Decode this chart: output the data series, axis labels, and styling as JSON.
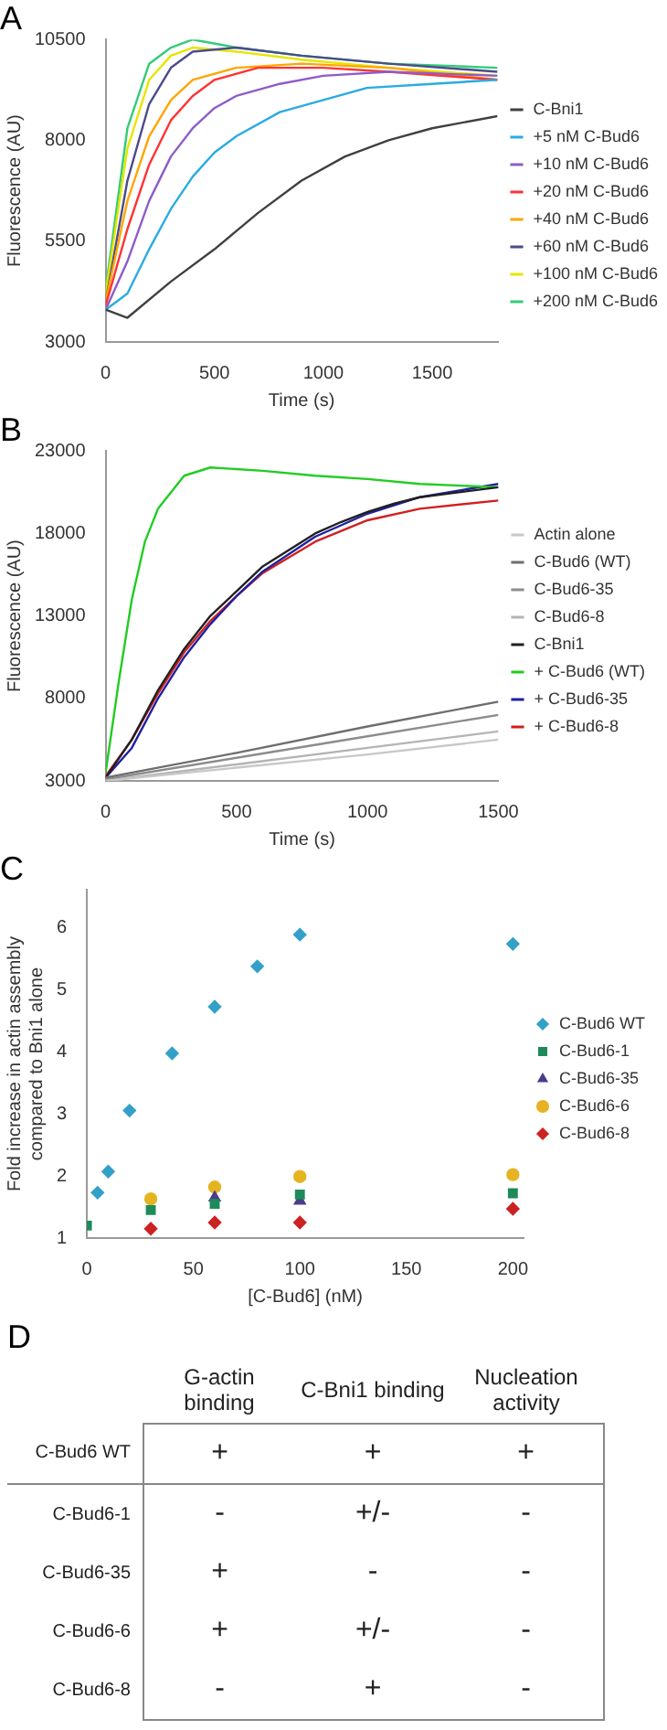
{
  "chart_data": [
    {
      "type": "line",
      "title": "A",
      "xlabel": "Time (s)",
      "ylabel": "Fluorescence (AU)",
      "xlim": [
        0,
        1800
      ],
      "xticks": [
        0,
        500,
        1000,
        1500
      ],
      "ylim": [
        3000,
        10500
      ],
      "yticks": [
        3000,
        5500,
        8000,
        10500
      ],
      "grid": false,
      "legend": "right",
      "marker": "none",
      "series": [
        {
          "name": "C-Bni1",
          "color": "#404040",
          "x": [
            0,
            100,
            300,
            500,
            700,
            900,
            1100,
            1300,
            1500,
            1800
          ],
          "values": [
            3800,
            3600,
            4500,
            5300,
            6200,
            7000,
            7600,
            8000,
            8300,
            8600
          ]
        },
        {
          "name": "+5 nM C-Bud6",
          "color": "#29abe2",
          "x": [
            0,
            100,
            200,
            300,
            400,
            500,
            600,
            800,
            1000,
            1200,
            1500,
            1800
          ],
          "values": [
            3800,
            4200,
            5300,
            6300,
            7100,
            7700,
            8100,
            8700,
            9000,
            9300,
            9400,
            9500
          ]
        },
        {
          "name": "+10 nM C-Bud6",
          "color": "#8e5cc8",
          "x": [
            0,
            100,
            200,
            300,
            400,
            500,
            600,
            800,
            1000,
            1300,
            1800
          ],
          "values": [
            3800,
            5000,
            6500,
            7600,
            8300,
            8800,
            9100,
            9400,
            9600,
            9700,
            9600
          ]
        },
        {
          "name": "+20 nM C-Bud6",
          "color": "#ff3333",
          "x": [
            0,
            100,
            200,
            300,
            400,
            500,
            700,
            1000,
            1300,
            1800
          ],
          "values": [
            3900,
            5800,
            7400,
            8500,
            9100,
            9500,
            9800,
            9800,
            9700,
            9500
          ]
        },
        {
          "name": "+40 nM C-Bud6",
          "color": "#ffa500",
          "x": [
            0,
            100,
            200,
            300,
            400,
            600,
            900,
            1300,
            1800
          ],
          "values": [
            4000,
            6500,
            8100,
            9000,
            9500,
            9800,
            9900,
            9800,
            9500
          ]
        },
        {
          "name": "+60 nM C-Bud6",
          "color": "#4b4b8b",
          "x": [
            0,
            100,
            200,
            300,
            400,
            600,
            900,
            1300,
            1800
          ],
          "values": [
            4000,
            7000,
            8900,
            9800,
            10200,
            10300,
            10100,
            9900,
            9700
          ]
        },
        {
          "name": "+100 nM C-Bud6",
          "color": "#e6e600",
          "x": [
            0,
            100,
            200,
            300,
            400,
            600,
            900,
            1300,
            1800
          ],
          "values": [
            4200,
            7800,
            9500,
            10100,
            10300,
            10200,
            10000,
            9800,
            9600
          ]
        },
        {
          "name": "+200 nM C-Bud6",
          "color": "#33cc77",
          "x": [
            0,
            100,
            200,
            300,
            400,
            600,
            900,
            1300,
            1800
          ],
          "values": [
            4300,
            8300,
            9900,
            10300,
            10500,
            10300,
            10100,
            9900,
            9800
          ]
        }
      ]
    },
    {
      "type": "line",
      "title": "B",
      "xlabel": "Time (s)",
      "ylabel": "Fluorescence (AU)",
      "xlim": [
        0,
        1500
      ],
      "xticks": [
        0,
        500,
        1000,
        1500
      ],
      "ylim": [
        3000,
        23000
      ],
      "yticks": [
        3000,
        8000,
        13000,
        18000,
        23000
      ],
      "grid": false,
      "legend": "right",
      "marker": "none",
      "series": [
        {
          "name": "Actin alone",
          "color": "#c8c8c8",
          "x": [
            0,
            500,
            1000,
            1500
          ],
          "values": [
            3000,
            3800,
            4600,
            5500
          ]
        },
        {
          "name": "C-Bud6 (WT)",
          "color": "#6e6e6e",
          "x": [
            0,
            500,
            1000,
            1500
          ],
          "values": [
            3200,
            4700,
            6300,
            7800
          ]
        },
        {
          "name": "C-Bud6-35",
          "color": "#8c8c8c",
          "x": [
            0,
            500,
            1000,
            1500
          ],
          "values": [
            3100,
            4400,
            5700,
            7000
          ]
        },
        {
          "name": "C-Bud6-8",
          "color": "#b4b4b4",
          "x": [
            0,
            500,
            1000,
            1500
          ],
          "values": [
            3000,
            4000,
            5000,
            6000
          ]
        },
        {
          "name": "C-Bni1",
          "color": "#202020",
          "x": [
            0,
            100,
            200,
            300,
            400,
            500,
            600,
            700,
            800,
            900,
            1000,
            1100,
            1200,
            1500
          ],
          "values": [
            3200,
            5500,
            8500,
            11000,
            13000,
            14500,
            16000,
            17000,
            18000,
            18700,
            19300,
            19800,
            20200,
            20800
          ]
        },
        {
          "name": "+ C-Bud6 (WT)",
          "color": "#22cc22",
          "x": [
            0,
            50,
            100,
            150,
            200,
            300,
            400,
            600,
            800,
            1000,
            1200,
            1500
          ],
          "values": [
            3500,
            9000,
            14000,
            17500,
            19500,
            21500,
            22000,
            21800,
            21500,
            21300,
            21000,
            20800
          ]
        },
        {
          "name": "+ C-Bud6-35",
          "color": "#2020a0",
          "x": [
            0,
            100,
            200,
            300,
            400,
            500,
            600,
            800,
            1000,
            1200,
            1500
          ],
          "values": [
            3200,
            5000,
            8000,
            10500,
            12500,
            14200,
            15700,
            17800,
            19200,
            20200,
            21000
          ]
        },
        {
          "name": "+ C-Bud6-8",
          "color": "#d02020",
          "x": [
            0,
            100,
            200,
            300,
            400,
            500,
            600,
            800,
            1000,
            1200,
            1500
          ],
          "values": [
            3300,
            5500,
            8300,
            10800,
            12700,
            14200,
            15600,
            17500,
            18800,
            19500,
            20000
          ]
        }
      ]
    },
    {
      "type": "scatter",
      "title": "C",
      "xlabel": "[C-Bud6] (nM)",
      "ylabel": "Fold increase in actin assembly compared to Bni1 alone",
      "xlim": [
        0,
        205
      ],
      "xticks": [
        0,
        50,
        100,
        150,
        200
      ],
      "ylim": [
        1,
        6.6
      ],
      "yticks": [
        1,
        2,
        3,
        4,
        5,
        6
      ],
      "grid": false,
      "legend": "right",
      "series": [
        {
          "name": "C-Bud6 WT",
          "color": "#33a0c8",
          "marker": "diamond",
          "x": [
            5,
            10,
            20,
            40,
            60,
            80,
            100,
            200
          ],
          "values": [
            1.73,
            2.07,
            3.05,
            3.97,
            4.72,
            5.37,
            5.88,
            5.73
          ]
        },
        {
          "name": "C-Bud6-1",
          "color": "#1e8a5a",
          "marker": "square",
          "x": [
            0,
            30,
            60,
            100,
            200
          ],
          "values": [
            1.2,
            1.45,
            1.55,
            1.7,
            1.72
          ]
        },
        {
          "name": "C-Bud6-35",
          "color": "#4b3b8b",
          "marker": "triangle",
          "x": [
            60,
            100
          ],
          "values": [
            1.65,
            1.6
          ]
        },
        {
          "name": "C-Bud6-6",
          "color": "#e6b422",
          "marker": "circle",
          "x": [
            30,
            60,
            100,
            200
          ],
          "values": [
            1.63,
            1.82,
            1.99,
            2.02
          ]
        },
        {
          "name": "C-Bud6-8",
          "color": "#cc2222",
          "marker": "diamond",
          "x": [
            30,
            60,
            100,
            200
          ],
          "values": [
            1.15,
            1.25,
            1.25,
            1.47
          ]
        }
      ]
    },
    {
      "type": "other",
      "title": "D",
      "categories": [
        "G-actin binding",
        "C-Bni1 binding",
        "Nucleation activity"
      ],
      "y_categories": [
        "C-Bud6 WT",
        "C-Bud6-1",
        "C-Bud6-35",
        "C-Bud6-6",
        "C-Bud6-8"
      ],
      "cell_labels": [
        [
          "+",
          "+",
          "+"
        ],
        [
          "-",
          "+/-",
          "-"
        ],
        [
          "+",
          "-",
          "-"
        ],
        [
          "+",
          "+/-",
          "-"
        ],
        [
          "-",
          "+",
          "-"
        ]
      ]
    }
  ]
}
